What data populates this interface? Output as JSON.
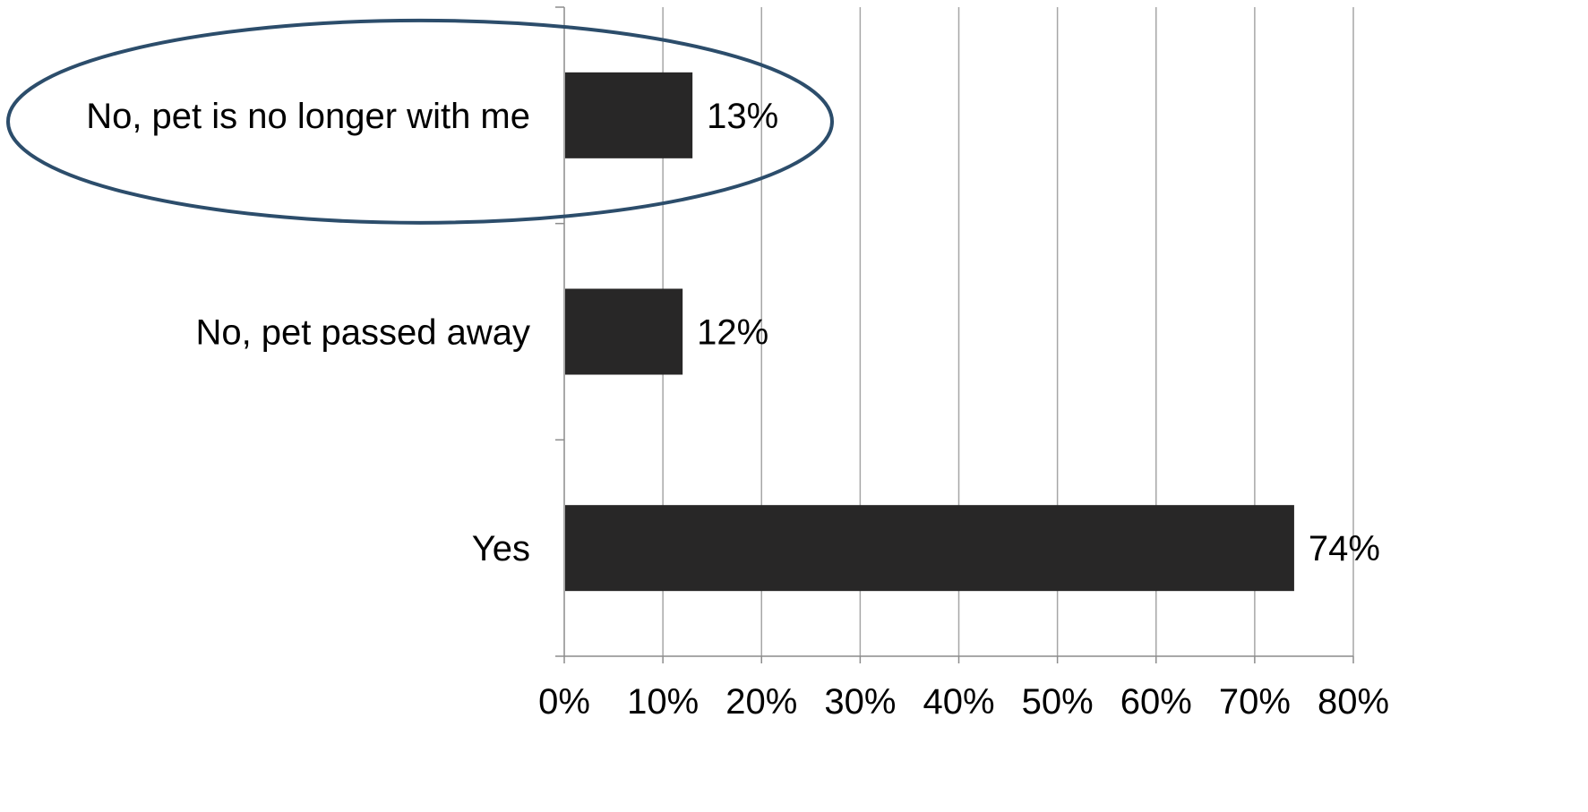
{
  "chart_data": {
    "type": "bar",
    "orientation": "horizontal",
    "categories": [
      "No, pet is no longer with me",
      "No, pet passed away",
      "Yes"
    ],
    "values": [
      13,
      12,
      74
    ],
    "data_labels": [
      "13%",
      "12%",
      "74%"
    ],
    "xlim": [
      0,
      80
    ],
    "xticks": [
      0,
      10,
      20,
      30,
      40,
      50,
      60,
      70,
      80
    ],
    "xtick_labels": [
      "0%",
      "10%",
      "20%",
      "30%",
      "40%",
      "50%",
      "60%",
      "70%",
      "80%"
    ],
    "grid": "vertical",
    "title": "",
    "xlabel": "",
    "ylabel": "",
    "highlighted_category": "No, pet is no longer with me",
    "colors": {
      "bar": "#282727",
      "grid": "#a6a6a6",
      "axis": "#8c8c8c",
      "highlight_ellipse": "#2c4d6b",
      "text": "#000000"
    }
  }
}
